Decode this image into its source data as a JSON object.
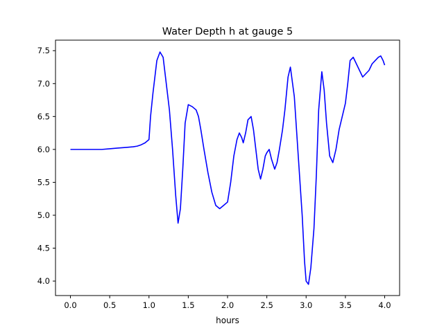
{
  "chart_data": {
    "type": "line",
    "title": "Water Depth h at gauge 5",
    "xlabel": "hours",
    "ylabel": "",
    "xlim": [
      -0.19,
      4.19
    ],
    "ylim": [
      3.78,
      7.66
    ],
    "xticks": [
      "0.0",
      "0.5",
      "1.0",
      "1.5",
      "2.0",
      "2.5",
      "3.0",
      "3.5",
      "4.0"
    ],
    "yticks": [
      "4.0",
      "4.5",
      "5.0",
      "5.5",
      "6.0",
      "6.5",
      "7.0",
      "7.5"
    ],
    "grid": false,
    "legend": "none",
    "line_color": "#0000ff",
    "x": [
      0.0,
      0.2,
      0.4,
      0.5,
      0.6,
      0.7,
      0.8,
      0.85,
      0.9,
      0.95,
      1.0,
      1.02,
      1.05,
      1.1,
      1.14,
      1.18,
      1.22,
      1.26,
      1.3,
      1.34,
      1.37,
      1.4,
      1.43,
      1.46,
      1.5,
      1.55,
      1.6,
      1.63,
      1.66,
      1.7,
      1.75,
      1.8,
      1.85,
      1.9,
      1.95,
      2.0,
      2.04,
      2.08,
      2.12,
      2.15,
      2.18,
      2.2,
      2.23,
      2.26,
      2.3,
      2.33,
      2.36,
      2.39,
      2.42,
      2.45,
      2.48,
      2.5,
      2.53,
      2.56,
      2.6,
      2.63,
      2.66,
      2.7,
      2.73,
      2.77,
      2.8,
      2.85,
      2.9,
      2.95,
      2.98,
      3.0,
      3.03,
      3.06,
      3.1,
      3.13,
      3.16,
      3.2,
      3.23,
      3.26,
      3.3,
      3.34,
      3.38,
      3.42,
      3.46,
      3.5,
      3.53,
      3.56,
      3.6,
      3.64,
      3.68,
      3.72,
      3.76,
      3.8,
      3.84,
      3.88,
      3.92,
      3.95,
      3.98,
      4.0
    ],
    "y": [
      6.0,
      6.0,
      6.0,
      6.01,
      6.02,
      6.03,
      6.04,
      6.05,
      6.07,
      6.1,
      6.15,
      6.5,
      6.85,
      7.35,
      7.48,
      7.4,
      7.0,
      6.6,
      6.0,
      5.3,
      4.88,
      5.1,
      5.7,
      6.4,
      6.68,
      6.65,
      6.6,
      6.5,
      6.3,
      6.0,
      5.65,
      5.35,
      5.15,
      5.1,
      5.15,
      5.2,
      5.5,
      5.9,
      6.15,
      6.25,
      6.18,
      6.1,
      6.25,
      6.45,
      6.5,
      6.3,
      6.0,
      5.7,
      5.55,
      5.7,
      5.9,
      5.95,
      6.0,
      5.85,
      5.7,
      5.8,
      6.0,
      6.3,
      6.6,
      7.1,
      7.25,
      6.8,
      5.9,
      5.0,
      4.3,
      4.0,
      3.95,
      4.2,
      4.8,
      5.6,
      6.6,
      7.18,
      6.9,
      6.4,
      5.9,
      5.8,
      6.0,
      6.3,
      6.5,
      6.7,
      7.0,
      7.35,
      7.4,
      7.3,
      7.2,
      7.1,
      7.15,
      7.2,
      7.3,
      7.35,
      7.4,
      7.42,
      7.35,
      7.28
    ]
  }
}
